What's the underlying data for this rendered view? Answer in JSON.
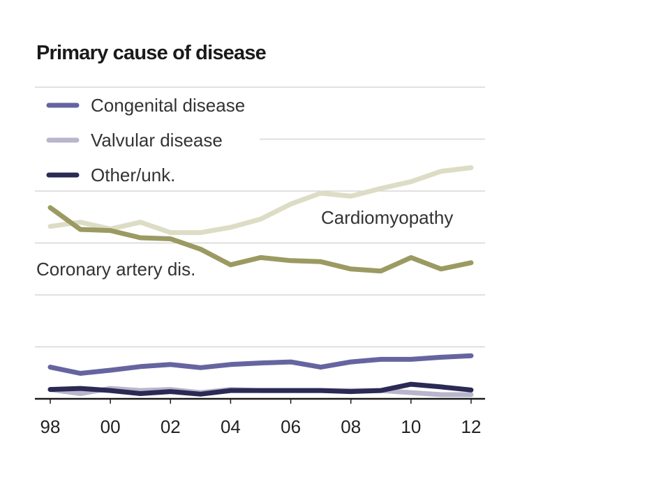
{
  "chart_data": {
    "type": "line",
    "title": "Primary cause of disease",
    "xlabel": "",
    "ylabel": "",
    "x": [
      1998,
      1999,
      2000,
      2001,
      2002,
      2003,
      2004,
      2005,
      2006,
      2007,
      2008,
      2009,
      2010,
      2011,
      2012
    ],
    "x_tick_labels": [
      "98",
      "00",
      "02",
      "04",
      "06",
      "08",
      "10",
      "12"
    ],
    "x_tick_values": [
      1998,
      2000,
      2002,
      2004,
      2006,
      2008,
      2010,
      2012
    ],
    "ylim": [
      0,
      60
    ],
    "y_gridlines": [
      10,
      20,
      30,
      40,
      50,
      60
    ],
    "y_axis_unit": "relative (no tick labels shown)",
    "grid": true,
    "legend_position": "top-left",
    "series": [
      {
        "name": "Congenital disease",
        "color": "#6664a0",
        "in_legend": true,
        "values": [
          6.1,
          4.9,
          5.5,
          6.2,
          6.6,
          6.0,
          6.6,
          6.9,
          7.1,
          6.1,
          7.1,
          7.6,
          7.6,
          8.0,
          8.3
        ]
      },
      {
        "name": "Valvular disease",
        "color": "#b8b5cc",
        "in_legend": true,
        "values": [
          1.8,
          1.0,
          2.0,
          1.6,
          1.8,
          1.2,
          1.8,
          1.6,
          1.6,
          1.6,
          1.6,
          1.6,
          1.2,
          0.8,
          0.8
        ]
      },
      {
        "name": "Other/unk.",
        "color": "#2a2a55",
        "in_legend": true,
        "values": [
          1.8,
          2.0,
          1.6,
          1.0,
          1.4,
          0.9,
          1.6,
          1.6,
          1.6,
          1.6,
          1.4,
          1.6,
          2.8,
          2.3,
          1.7
        ]
      },
      {
        "name": "Cardiomyopathy",
        "color": "#ddddc6",
        "in_legend": false,
        "values": [
          33.2,
          34.0,
          32.7,
          34.0,
          32.0,
          32.0,
          33.0,
          34.6,
          37.5,
          39.6,
          39.0,
          40.5,
          41.8,
          43.8,
          44.5
        ]
      },
      {
        "name": "Coronary artery dis.",
        "color": "#9b9a62",
        "in_legend": false,
        "values": [
          36.8,
          32.6,
          32.4,
          31.0,
          30.8,
          28.8,
          25.8,
          27.2,
          26.6,
          26.4,
          25.0,
          24.6,
          27.2,
          25.0,
          26.2
        ]
      }
    ],
    "annotations": [
      {
        "text": "Cardiomyopathy",
        "series": "Cardiomyopathy"
      },
      {
        "text": "Coronary artery dis.",
        "series": "Coronary artery dis."
      }
    ]
  }
}
